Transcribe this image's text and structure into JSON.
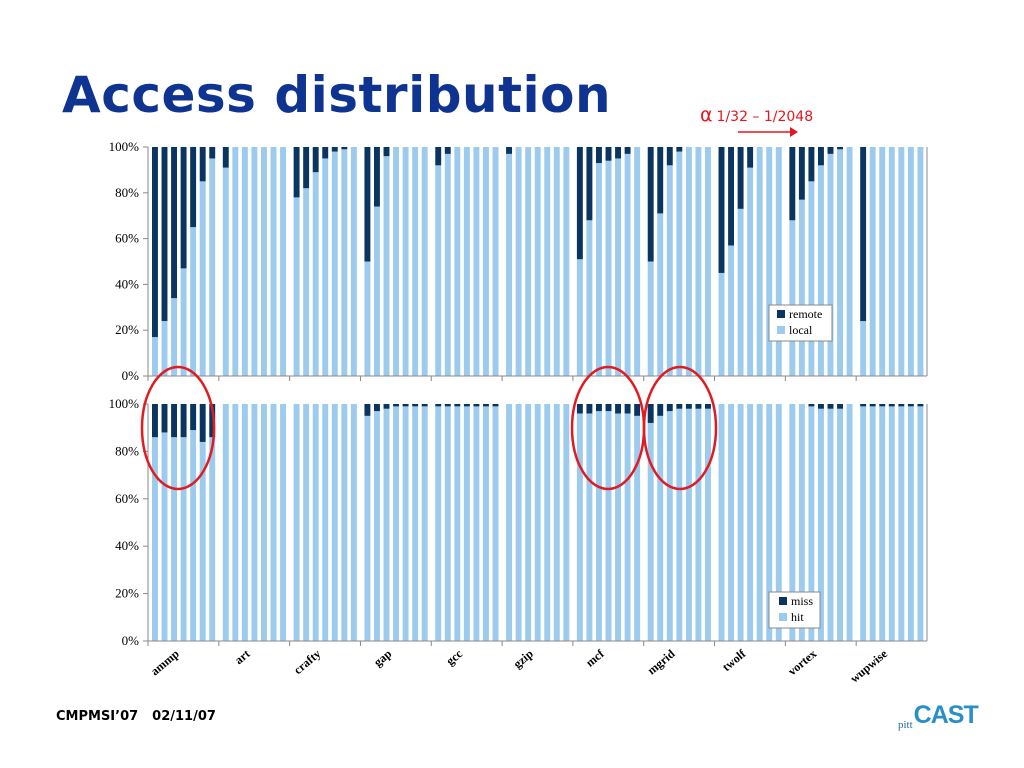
{
  "slide": {
    "title": "Access distribution",
    "alpha_symbol": "α",
    "alpha_range": "1/32 – 1/2048",
    "footer_conf": "CMPMSI’07",
    "footer_date": "02/11/07",
    "logo_small": "pitt",
    "logo_text": "CAST"
  },
  "colors": {
    "dark": "#0a3560",
    "light": "#9ccbee",
    "title": "#0f3390",
    "annotation": "#e4161f"
  },
  "chart_data": [
    {
      "type": "bar",
      "stacked": true,
      "ylim": [
        0,
        100
      ],
      "yticks": [
        "0%",
        "20%",
        "40%",
        "60%",
        "80%",
        "100%"
      ],
      "grid": false,
      "legend": "right",
      "categories": [
        "ammp",
        "art",
        "crafty",
        "gap",
        "gcc",
        "gzip",
        "mcf",
        "mgrid",
        "twolf",
        "vortex",
        "wupwise"
      ],
      "bars_per_category": 7,
      "series": [
        {
          "name": "local",
          "color": "#9ccbee"
        },
        {
          "name": "remote",
          "color": "#0a3560"
        }
      ],
      "local_values": [
        [
          17,
          24,
          34,
          47,
          65,
          85,
          95
        ],
        [
          91,
          100,
          100,
          100,
          100,
          100,
          100
        ],
        [
          78,
          82,
          89,
          95,
          98,
          99,
          100
        ],
        [
          50,
          74,
          96,
          100,
          100,
          100,
          100
        ],
        [
          92,
          97,
          100,
          100,
          100,
          100,
          100
        ],
        [
          97,
          100,
          100,
          100,
          100,
          100,
          100
        ],
        [
          51,
          68,
          93,
          94,
          95,
          97,
          100
        ],
        [
          50,
          71,
          92,
          98,
          100,
          100,
          100
        ],
        [
          45,
          57,
          73,
          91,
          100,
          100,
          100
        ],
        [
          68,
          77,
          85,
          92,
          97,
          99,
          100
        ],
        [
          24,
          100,
          100,
          100,
          100,
          100,
          100
        ]
      ]
    },
    {
      "type": "bar",
      "stacked": true,
      "ylim": [
        0,
        100
      ],
      "yticks": [
        "0%",
        "20%",
        "40%",
        "60%",
        "80%",
        "100%"
      ],
      "grid": false,
      "legend": "right",
      "categories": [
        "ammp",
        "art",
        "crafty",
        "gap",
        "gcc",
        "gzip",
        "mcf",
        "mgrid",
        "twolf",
        "vortex",
        "wupwise"
      ],
      "bars_per_category": 7,
      "series": [
        {
          "name": "hit",
          "color": "#9ccbee"
        },
        {
          "name": "miss",
          "color": "#0a3560"
        }
      ],
      "hit_values": [
        [
          86,
          88,
          86,
          86,
          89,
          84,
          86
        ],
        [
          100,
          100,
          100,
          100,
          100,
          100,
          100
        ],
        [
          100,
          100,
          100,
          100,
          100,
          100,
          100
        ],
        [
          95,
          97,
          98,
          99,
          99,
          99,
          99
        ],
        [
          99,
          99,
          99,
          99,
          99,
          99,
          99
        ],
        [
          100,
          100,
          100,
          100,
          100,
          100,
          100
        ],
        [
          96,
          96,
          97,
          97,
          96,
          96,
          95
        ],
        [
          92,
          95,
          97,
          98,
          98,
          98,
          98
        ],
        [
          100,
          100,
          100,
          100,
          100,
          100,
          100
        ],
        [
          100,
          100,
          99,
          98,
          98,
          98,
          100
        ],
        [
          99,
          99,
          99,
          99,
          99,
          99,
          99
        ]
      ]
    }
  ]
}
